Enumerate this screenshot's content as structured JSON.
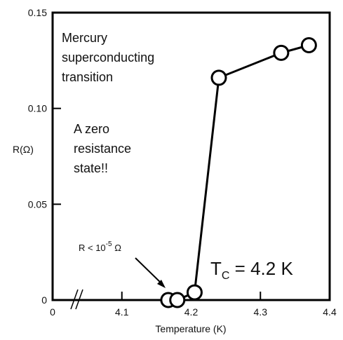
{
  "chart_data": {
    "type": "line",
    "title": "",
    "xlabel": "Temperature (K)",
    "ylabel": "R(Ω)",
    "xlim": [
      4.0,
      4.4
    ],
    "ylim": [
      0,
      0.15
    ],
    "x_ticks": [
      "0",
      "4.1",
      "4.2",
      "4.3",
      "4.4"
    ],
    "y_ticks": [
      "0",
      "0.05",
      "0.10",
      "0.15"
    ],
    "grid": false,
    "axis_break": true,
    "series": [
      {
        "x": [
          4.167,
          4.18,
          4.205,
          4.24,
          4.33,
          4.37
        ],
        "y": [
          0.0,
          0.0,
          0.004,
          0.116,
          0.129,
          0.133
        ]
      }
    ],
    "annotations": {
      "main": [
        "Mercury",
        "superconducting",
        "transition"
      ],
      "zero_state": [
        "A zero",
        "resistance",
        "state!!"
      ],
      "bound_prefix": "R < 10",
      "bound_exp": "-5",
      "bound_unit": " Ω",
      "tc_prefix": "T",
      "tc_sub": "C",
      "tc_suffix": " = 4.2 K"
    }
  }
}
